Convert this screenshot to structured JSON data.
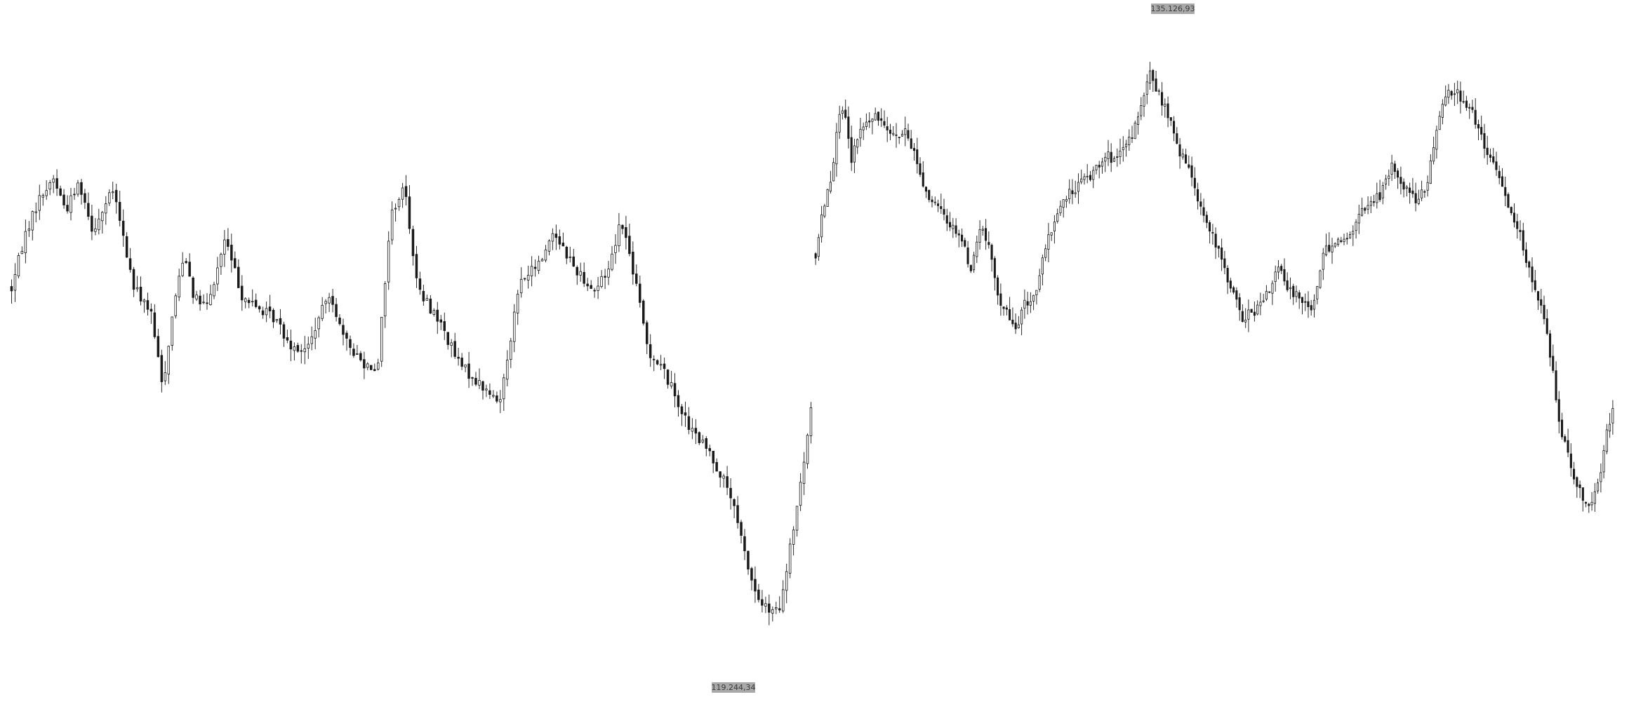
{
  "chart_data": {
    "type": "candlestick",
    "colors": {
      "candle": "#1a1a1a",
      "wick": "#2a2a2a",
      "label_bg": "#a9a9a9",
      "label_text": "#3a3a3a"
    },
    "ylim": [
      118800,
      135800
    ],
    "high_label": "135.126,93",
    "low_label": "119.244,34",
    "segments": [
      {
        "count": 230,
        "start": 128900,
        "points": [
          [
            0,
            128850
          ],
          [
            20,
            130200
          ],
          [
            40,
            131050
          ],
          [
            62,
            131600
          ],
          [
            80,
            130800
          ],
          [
            100,
            131500
          ],
          [
            120,
            130300
          ],
          [
            150,
            131300
          ],
          [
            180,
            128900
          ],
          [
            205,
            128300
          ],
          [
            223,
            126400
          ],
          [
            240,
            128500
          ],
          [
            255,
            129800
          ],
          [
            270,
            128600
          ],
          [
            290,
            128400
          ],
          [
            315,
            130100
          ],
          [
            340,
            128700
          ],
          [
            360,
            128400
          ],
          [
            390,
            128100
          ],
          [
            410,
            127500
          ],
          [
            435,
            127300
          ],
          [
            470,
            128800
          ],
          [
            490,
            127600
          ],
          [
            520,
            127000
          ],
          [
            540,
            126900
          ],
          [
            560,
            130700
          ],
          [
            580,
            131400
          ],
          [
            600,
            128800
          ],
          [
            630,
            128100
          ],
          [
            660,
            127000
          ],
          [
            690,
            126500
          ],
          [
            720,
            126000
          ],
          [
            750,
            129000
          ],
          [
            780,
            129500
          ],
          [
            800,
            130300
          ],
          [
            830,
            129400
          ],
          [
            860,
            128800
          ],
          [
            880,
            129300
          ],
          [
            900,
            130600
          ],
          [
            920,
            129100
          ],
          [
            940,
            127300
          ],
          [
            960,
            126900
          ],
          [
            980,
            126200
          ],
          [
            1000,
            125400
          ],
          [
            1030,
            124800
          ],
          [
            1060,
            123800
          ],
          [
            1085,
            122100
          ],
          [
            1100,
            121200
          ],
          [
            1120,
            120800
          ],
          [
            1135,
            120900
          ],
          [
            1150,
            122500
          ],
          [
            1165,
            124000
          ],
          [
            1180,
            125800
          ]
        ]
      },
      {
        "count": 268,
        "start": 129700,
        "points": [
          [
            0,
            129700
          ],
          [
            12,
            130800
          ],
          [
            28,
            131700
          ],
          [
            40,
            133300
          ],
          [
            52,
            133000
          ],
          [
            62,
            132000
          ],
          [
            75,
            132700
          ],
          [
            90,
            133000
          ],
          [
            110,
            133100
          ],
          [
            125,
            132900
          ],
          [
            140,
            132600
          ],
          [
            155,
            132700
          ],
          [
            170,
            132300
          ],
          [
            185,
            131500
          ],
          [
            200,
            131000
          ],
          [
            215,
            130800
          ],
          [
            230,
            130500
          ],
          [
            250,
            130200
          ],
          [
            270,
            129300
          ],
          [
            285,
            130400
          ],
          [
            300,
            129900
          ],
          [
            315,
            128700
          ],
          [
            330,
            128300
          ],
          [
            345,
            127800
          ],
          [
            360,
            128400
          ],
          [
            380,
            128700
          ],
          [
            400,
            129900
          ],
          [
            420,
            130800
          ],
          [
            440,
            131200
          ],
          [
            460,
            131500
          ],
          [
            480,
            131700
          ],
          [
            500,
            132200
          ],
          [
            520,
            132000
          ],
          [
            540,
            132400
          ],
          [
            560,
            133100
          ],
          [
            580,
            134200
          ],
          [
            600,
            133500
          ],
          [
            615,
            133000
          ],
          [
            630,
            132200
          ],
          [
            650,
            131800
          ],
          [
            665,
            131000
          ],
          [
            680,
            130400
          ],
          [
            700,
            129700
          ],
          [
            720,
            128900
          ],
          [
            740,
            128100
          ],
          [
            760,
            128300
          ],
          [
            780,
            128600
          ],
          [
            800,
            129400
          ],
          [
            820,
            128800
          ],
          [
            840,
            128700
          ],
          [
            860,
            128300
          ],
          [
            880,
            129700
          ],
          [
            900,
            130100
          ],
          [
            920,
            130000
          ],
          [
            940,
            130600
          ],
          [
            960,
            131000
          ],
          [
            980,
            131200
          ],
          [
            1000,
            131900
          ],
          [
            1020,
            131400
          ],
          [
            1040,
            131100
          ],
          [
            1060,
            131300
          ],
          [
            1080,
            133200
          ],
          [
            1100,
            133800
          ],
          [
            1120,
            133600
          ],
          [
            1140,
            133200
          ],
          [
            1160,
            132300
          ],
          [
            1180,
            131800
          ],
          [
            1200,
            131000
          ],
          [
            1220,
            130300
          ],
          [
            1240,
            129100
          ],
          [
            1250,
            128800
          ],
          [
            1260,
            128200
          ],
          [
            1270,
            127600
          ],
          [
            1280,
            126600
          ],
          [
            1290,
            125500
          ],
          [
            1300,
            125000
          ],
          [
            1315,
            124200
          ],
          [
            1330,
            123700
          ],
          [
            1345,
            123500
          ],
          [
            1360,
            124200
          ],
          [
            1370,
            125200
          ],
          [
            1382,
            125900
          ]
        ]
      }
    ]
  }
}
